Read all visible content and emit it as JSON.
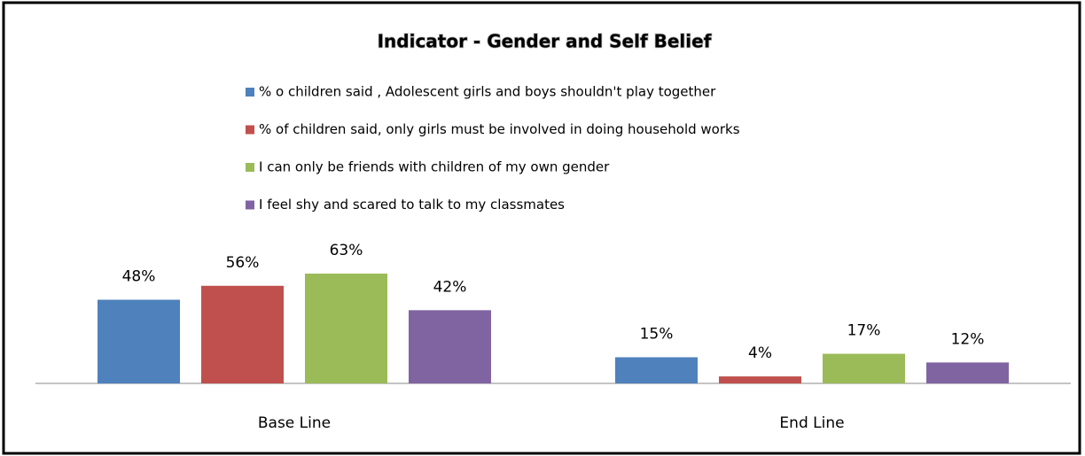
{
  "chart_data": {
    "type": "bar",
    "title": "Indicator - Gender and Self Belief",
    "categories": [
      "Base Line",
      "End Line"
    ],
    "series": [
      {
        "name": "% o children said , Adolescent girls and boys shouldn't play together",
        "color": "#4f81bd",
        "values": [
          48,
          15
        ],
        "value_labels": [
          "48%",
          "15%"
        ]
      },
      {
        "name": "% of children said, only girls must be involved in doing household works",
        "color": "#c0504d",
        "values": [
          56,
          4
        ],
        "value_labels": [
          "56%",
          "4%"
        ]
      },
      {
        "name": "I can only be friends with children of my own gender",
        "color": "#9bbb59",
        "values": [
          63,
          17
        ],
        "value_labels": [
          "63%",
          "17%"
        ]
      },
      {
        "name": "I feel shy and scared to talk to my classmates",
        "color": "#8064a2",
        "values": [
          42,
          12
        ],
        "value_labels": [
          "42%",
          "12%"
        ]
      }
    ]
  }
}
